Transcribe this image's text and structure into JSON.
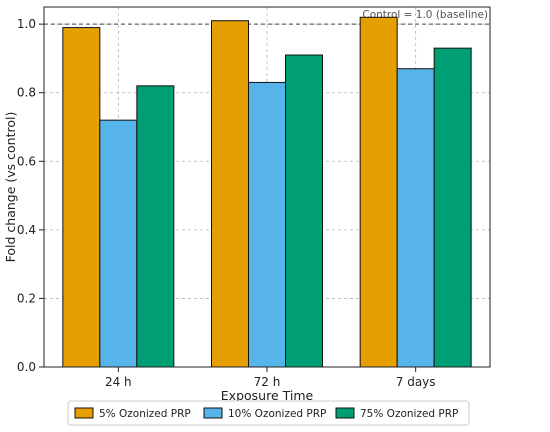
{
  "chart_data": {
    "type": "bar",
    "categories": [
      "24 h",
      "72 h",
      "7 days"
    ],
    "series": [
      {
        "name": "5% Ozonized PRP",
        "values": [
          0.99,
          1.01,
          1.02
        ],
        "color": "#E69F00"
      },
      {
        "name": "10% Ozonized PRP",
        "values": [
          0.72,
          0.83,
          0.87
        ],
        "color": "#56B4E9"
      },
      {
        "name": "75% Ozonized PRP",
        "values": [
          0.82,
          0.91,
          0.93
        ],
        "color": "#009E73"
      }
    ],
    "title": "",
    "xlabel": "Exposure Time",
    "ylabel": "Fold change (vs control)",
    "ylim": [
      0,
      1.05
    ],
    "yticks": [
      0.0,
      0.2,
      0.4,
      0.6,
      0.8,
      1.0
    ],
    "ytick_labels": [
      "0.0",
      "0.2",
      "0.4",
      "0.6",
      "0.8",
      "1.0"
    ],
    "grid": true,
    "legend_position": "bottom",
    "baseline": {
      "value": 1.0,
      "label": "Control = 1.0 (baseline)"
    }
  }
}
